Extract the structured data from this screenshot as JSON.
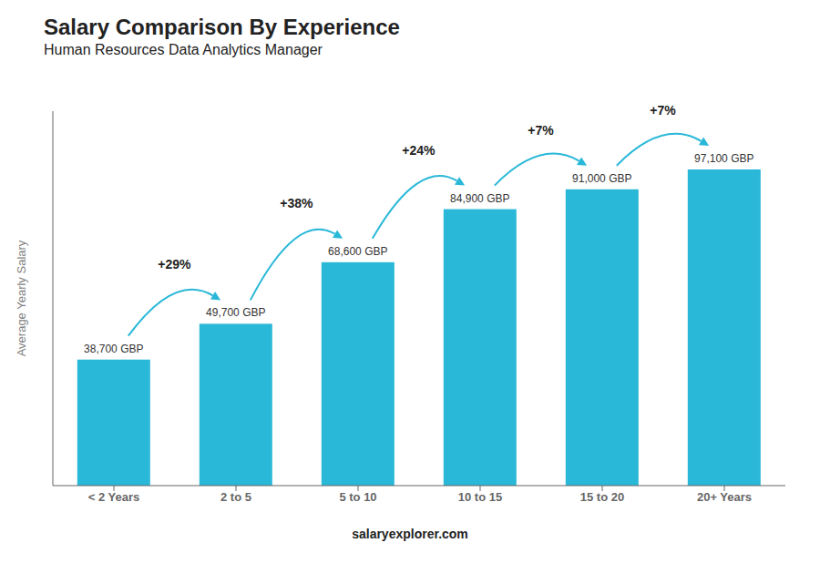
{
  "chart_data": {
    "type": "bar",
    "title": "Salary Comparison By Experience",
    "subtitle": "Human Resources Data Analytics Manager",
    "categories": [
      "< 2 Years",
      "2 to 5",
      "5 to 10",
      "10 to 15",
      "15 to 20",
      "20+ Years"
    ],
    "values": [
      38700,
      49700,
      68600,
      84900,
      91000,
      97100
    ],
    "value_labels": [
      "38,700 GBP",
      "49,700 GBP",
      "68,600 GBP",
      "84,900 GBP",
      "91,000 GBP",
      "97,100 GBP"
    ],
    "data_labels": true,
    "annotations": [
      "+29%",
      "+38%",
      "+24%",
      "+7%",
      "+7%"
    ],
    "y_label": "Average Yearly Salary",
    "watermark": "salaryexplorer.com",
    "color": "#29b8d8",
    "ylim": [
      0,
      115000
    ],
    "tick_labels": "x",
    "grid": false
  }
}
